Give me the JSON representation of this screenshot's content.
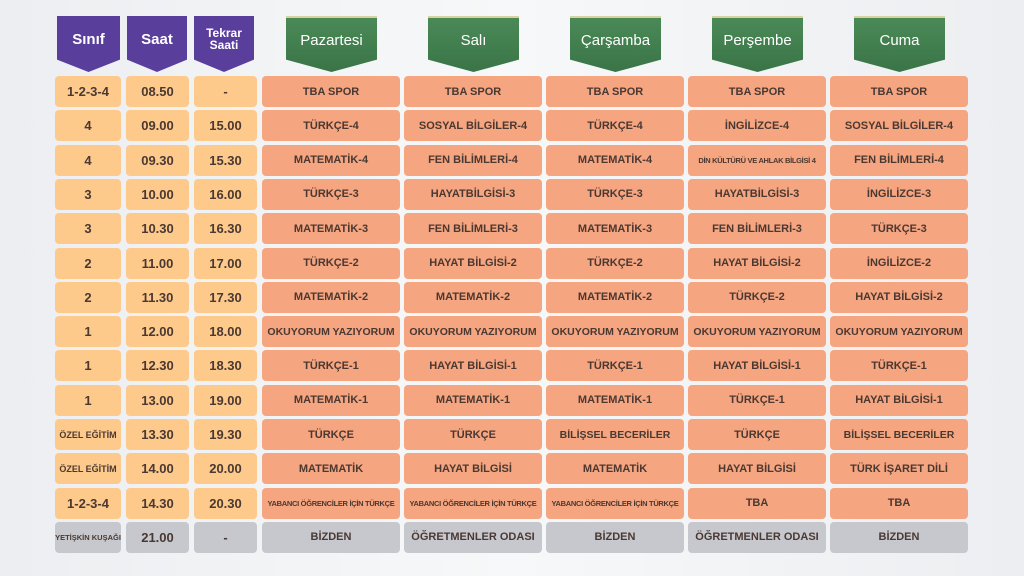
{
  "headers": {
    "sinif": "Sınıf",
    "saat": "Saat",
    "tekrar": "Tekrar Saati",
    "days": [
      "Pazartesi",
      "Salı",
      "Çarşamba",
      "Perşembe",
      "Cuma"
    ]
  },
  "colors": {
    "purple": "#5a3e9c",
    "green": "#3a7447",
    "orange": "#fdca8c",
    "salmon": "#f5a57f",
    "gray": "#c7c8cd"
  },
  "rows": [
    {
      "sinif": "1-2-3-4",
      "saat": "08.50",
      "tekrar": "-",
      "days": [
        "TBA SPOR",
        "TBA SPOR",
        "TBA SPOR",
        "TBA SPOR",
        "TBA SPOR"
      ]
    },
    {
      "sinif": "4",
      "saat": "09.00",
      "tekrar": "15.00",
      "days": [
        "TÜRKÇE-4",
        "SOSYAL BİLGİLER-4",
        "TÜRKÇE-4",
        "İNGİLİZCE-4",
        "SOSYAL BİLGİLER-4"
      ]
    },
    {
      "sinif": "4",
      "saat": "09.30",
      "tekrar": "15.30",
      "days": [
        "MATEMATİK-4",
        "FEN BİLİMLERİ-4",
        "MATEMATİK-4",
        "DİN KÜLTÜRÜ VE AHLAK BİLGİSİ 4",
        "FEN BİLİMLERİ-4"
      ]
    },
    {
      "sinif": "3",
      "saat": "10.00",
      "tekrar": "16.00",
      "days": [
        "TÜRKÇE-3",
        "HAYATBİLGİSİ-3",
        "TÜRKÇE-3",
        "HAYATBİLGİSİ-3",
        "İNGİLİZCE-3"
      ]
    },
    {
      "sinif": "3",
      "saat": "10.30",
      "tekrar": "16.30",
      "days": [
        "MATEMATİK-3",
        "FEN BİLİMLERİ-3",
        "MATEMATİK-3",
        "FEN BİLİMLERİ-3",
        "TÜRKÇE-3"
      ]
    },
    {
      "sinif": "2",
      "saat": "11.00",
      "tekrar": "17.00",
      "days": [
        "TÜRKÇE-2",
        "HAYAT BİLGİSİ-2",
        "TÜRKÇE-2",
        "HAYAT BİLGİSİ-2",
        "İNGİLİZCE-2"
      ]
    },
    {
      "sinif": "2",
      "saat": "11.30",
      "tekrar": "17.30",
      "days": [
        "MATEMATİK-2",
        "MATEMATİK-2",
        "MATEMATİK-2",
        "TÜRKÇE-2",
        "HAYAT BİLGİSİ-2"
      ]
    },
    {
      "sinif": "1",
      "saat": "12.00",
      "tekrar": "18.00",
      "days": [
        "OKUYORUM YAZIYORUM",
        "OKUYORUM YAZIYORUM",
        "OKUYORUM YAZIYORUM",
        "OKUYORUM YAZIYORUM",
        "OKUYORUM YAZIYORUM"
      ]
    },
    {
      "sinif": "1",
      "saat": "12.30",
      "tekrar": "18.30",
      "days": [
        "TÜRKÇE-1",
        "HAYAT BİLGİSİ-1",
        "TÜRKÇE-1",
        "HAYAT BİLGİSİ-1",
        "TÜRKÇE-1"
      ]
    },
    {
      "sinif": "1",
      "saat": "13.00",
      "tekrar": "19.00",
      "days": [
        "MATEMATİK-1",
        "MATEMATİK-1",
        "MATEMATİK-1",
        "TÜRKÇE-1",
        "HAYAT BİLGİSİ-1"
      ]
    },
    {
      "sinif": "ÖZEL EĞİTİM",
      "saat": "13.30",
      "tekrar": "19.30",
      "days": [
        "TÜRKÇE",
        "TÜRKÇE",
        "BİLİŞSEL BECERİLER",
        "TÜRKÇE",
        "BİLİŞSEL BECERİLER"
      ]
    },
    {
      "sinif": "ÖZEL EĞİTİM",
      "saat": "14.00",
      "tekrar": "20.00",
      "days": [
        "MATEMATİK",
        "HAYAT BİLGİSİ",
        "MATEMATİK",
        "HAYAT BİLGİSİ",
        "TÜRK İŞARET DİLİ"
      ]
    },
    {
      "sinif": "1-2-3-4",
      "saat": "14.30",
      "tekrar": "20.30",
      "days": [
        "YABANCI ÖĞRENCİLER İÇİN TÜRKÇE",
        "YABANCI ÖĞRENCİLER İÇİN TÜRKÇE",
        "YABANCI ÖĞRENCİLER İÇİN TÜRKÇE",
        "TBA",
        "TBA"
      ]
    },
    {
      "sinif": "YETİŞKİN KUŞAĞI",
      "saat": "21.00",
      "tekrar": "-",
      "days": [
        "BİZDEN",
        "ÖĞRETMENLER ODASI",
        "BİZDEN",
        "ÖĞRETMENLER ODASI",
        "BİZDEN"
      ],
      "gray": true
    }
  ]
}
